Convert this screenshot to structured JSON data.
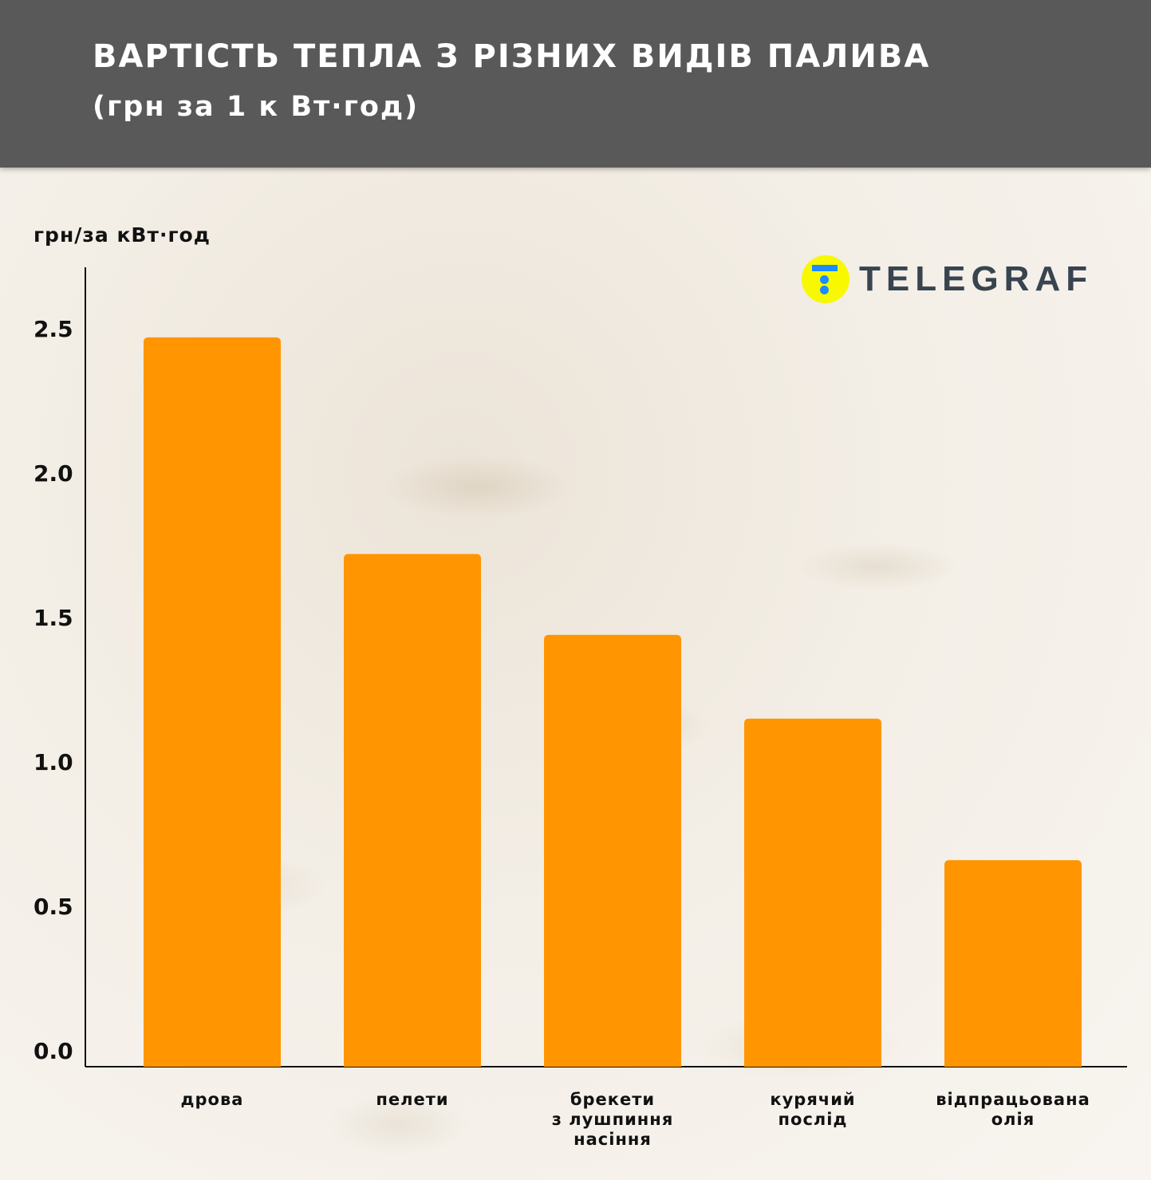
{
  "header": {
    "title": "ВАРТІСТЬ ТЕПЛА З РІЗНИХ ВИДІВ ПАЛИВА",
    "subtitle": "(грн за 1 к Вт·год)"
  },
  "logo": {
    "text": "TELEGRAF",
    "circle_color": "#f8f800",
    "mark_color": "#1a8cff"
  },
  "chart_data": {
    "type": "bar",
    "title": "ВАРТІСТЬ ТЕПЛА З РІЗНИХ ВИДІВ ПАЛИВА",
    "subtitle": "(грн за 1 к Вт·год)",
    "ylabel": "грн/за кВт·год",
    "xlabel": "",
    "categories": [
      [
        "дрова"
      ],
      [
        "пелети"
      ],
      [
        "брекети",
        "з лушпиння",
        "насіння"
      ],
      [
        "курячий",
        "послід"
      ],
      [
        "відпрацьована",
        "олія"
      ]
    ],
    "values": [
      2.47,
      1.72,
      1.44,
      1.15,
      0.66
    ],
    "yticks": [
      "0.0",
      "0.5",
      "1.0",
      "1.5",
      "2.0",
      "2.5"
    ],
    "ylim": [
      0,
      2.75
    ],
    "grid": false,
    "bar_color": "#ff9500"
  }
}
